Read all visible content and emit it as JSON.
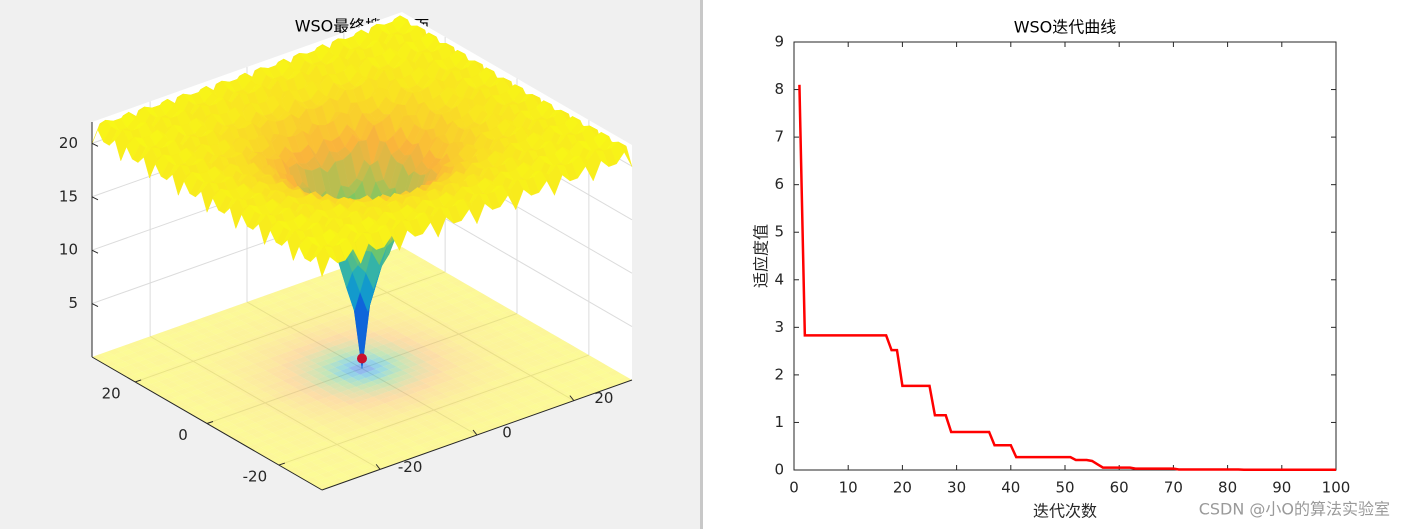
{
  "chart_data": [
    {
      "type": "surface",
      "title": "WSO最终搜索曲面",
      "xlim": [
        -32,
        32
      ],
      "ylim": [
        -32,
        32
      ],
      "zlim": [
        0,
        22
      ],
      "xticks": [
        -20,
        0,
        20
      ],
      "yticks": [
        -20,
        0,
        20
      ],
      "zticks": [
        5,
        10,
        15,
        20
      ],
      "grid": true
    },
    {
      "type": "line",
      "title": "WSO迭代曲线",
      "xlabel": "迭代次数",
      "ylabel": "适应度值",
      "color": "#ff0000",
      "x": [
        1,
        2,
        3,
        4,
        5,
        6,
        7,
        8,
        9,
        10,
        11,
        12,
        13,
        14,
        15,
        16,
        17,
        18,
        19,
        20,
        21,
        22,
        23,
        24,
        25,
        26,
        27,
        28,
        29,
        30,
        31,
        32,
        33,
        34,
        35,
        36,
        37,
        38,
        39,
        40,
        41,
        42,
        43,
        44,
        45,
        46,
        47,
        48,
        49,
        50,
        51,
        52,
        53,
        54,
        55,
        56,
        57,
        58,
        59,
        60,
        61,
        62,
        63,
        64,
        65,
        66,
        67,
        68,
        69,
        70,
        71,
        72,
        73,
        74,
        75,
        76,
        77,
        78,
        79,
        80,
        81,
        82,
        83,
        84,
        85,
        86,
        87,
        88,
        89,
        90,
        91,
        92,
        93,
        94,
        95,
        96,
        97,
        98,
        99,
        100
      ],
      "values": [
        8.1,
        2.83,
        2.83,
        2.83,
        2.83,
        2.83,
        2.83,
        2.83,
        2.83,
        2.83,
        2.83,
        2.83,
        2.83,
        2.83,
        2.83,
        2.83,
        2.83,
        2.52,
        2.52,
        1.77,
        1.77,
        1.77,
        1.77,
        1.77,
        1.77,
        1.15,
        1.15,
        1.15,
        0.8,
        0.8,
        0.8,
        0.8,
        0.8,
        0.8,
        0.8,
        0.8,
        0.52,
        0.52,
        0.52,
        0.52,
        0.27,
        0.27,
        0.27,
        0.27,
        0.27,
        0.27,
        0.27,
        0.27,
        0.27,
        0.27,
        0.27,
        0.21,
        0.21,
        0.21,
        0.19,
        0.12,
        0.05,
        0.05,
        0.05,
        0.05,
        0.05,
        0.05,
        0.03,
        0.03,
        0.03,
        0.03,
        0.03,
        0.03,
        0.03,
        0.03,
        0.01,
        0.01,
        0.01,
        0.01,
        0.01,
        0.01,
        0.01,
        0.01,
        0.01,
        0.01,
        0.01,
        0.01,
        0.005,
        0.005,
        0.005,
        0.005,
        0.005,
        0.005,
        0.005,
        0.005,
        0.005,
        0.005,
        0.005,
        0.005,
        0.005,
        0.005,
        0.005,
        0.005,
        0.005,
        0.005
      ],
      "xlim": [
        0,
        100
      ],
      "ylim": [
        0,
        9
      ],
      "xticks": [
        0,
        10,
        20,
        30,
        40,
        50,
        60,
        70,
        80,
        90,
        100
      ],
      "yticks": [
        0,
        1,
        2,
        3,
        4,
        5,
        6,
        7,
        8,
        9
      ]
    }
  ],
  "watermark": "CSDN @小O的算法实验室"
}
